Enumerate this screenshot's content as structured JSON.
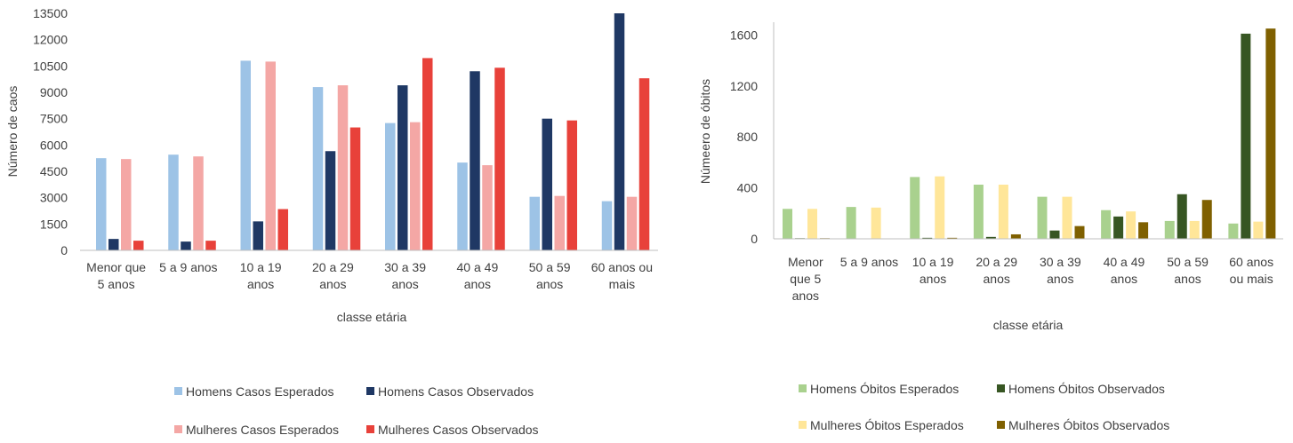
{
  "chart_data": [
    {
      "type": "bar",
      "ylabel": "Número de caos",
      "xlabel": "classe etária",
      "ylim": [
        0,
        13500
      ],
      "yticks": [
        0,
        1500,
        3000,
        4500,
        6000,
        7500,
        9000,
        10500,
        12000,
        13500
      ],
      "categories": [
        [
          "Menor que",
          "5 anos"
        ],
        [
          "5 a 9 anos"
        ],
        [
          "10 a 19",
          "anos"
        ],
        [
          "20 a 29",
          "anos"
        ],
        [
          "30 a 39",
          "anos"
        ],
        [
          "40 a 49",
          "anos"
        ],
        [
          "50 a 59",
          "anos"
        ],
        [
          "60 anos ou",
          "mais"
        ]
      ],
      "series": [
        {
          "name": "Homens Casos Esperados",
          "color": "#9DC3E6",
          "values": [
            5250,
            5450,
            10800,
            9300,
            7250,
            5000,
            3050,
            2800
          ]
        },
        {
          "name": "Homens Casos Observados",
          "color": "#1F3864",
          "values": [
            650,
            500,
            1650,
            5650,
            9400,
            10200,
            7500,
            13500
          ]
        },
        {
          "name": "Mulheres Casos Esperados",
          "color": "#F4A7A5",
          "values": [
            5200,
            5350,
            10750,
            9400,
            7300,
            4850,
            3100,
            3050
          ]
        },
        {
          "name": "Mulheres Casos Observados",
          "color": "#E8413A",
          "values": [
            550,
            550,
            2350,
            7000,
            10950,
            10400,
            7400,
            9800
          ]
        }
      ],
      "legend_position": "bottom"
    },
    {
      "type": "bar",
      "ylabel": "Númeero de óbitos",
      "xlabel": "classe etária",
      "ylim": [
        0,
        1700
      ],
      "yticks": [
        0,
        400,
        800,
        1200,
        1600
      ],
      "categories": [
        [
          "Menor",
          "que 5",
          "anos"
        ],
        [
          "5 a 9 anos"
        ],
        [
          "10 a 19",
          "anos"
        ],
        [
          "20 a 29",
          "anos"
        ],
        [
          "30 a 39",
          "anos"
        ],
        [
          "40 a 49",
          "anos"
        ],
        [
          "50 a 59",
          "anos"
        ],
        [
          "60 anos",
          "ou mais"
        ]
      ],
      "series": [
        {
          "name": "Homens Óbitos Esperados",
          "color": "#A9D18E",
          "values": [
            235,
            250,
            485,
            425,
            330,
            225,
            140,
            120
          ]
        },
        {
          "name": "Homens Óbitos Observados",
          "color": "#375623",
          "values": [
            5,
            3,
            8,
            15,
            65,
            175,
            350,
            1610
          ]
        },
        {
          "name": "Mulheres Óbitos Esperados",
          "color": "#FFE699",
          "values": [
            235,
            245,
            490,
            425,
            330,
            215,
            140,
            135
          ]
        },
        {
          "name": "Mulheres Óbitos Observados",
          "color": "#7F6000",
          "values": [
            5,
            3,
            8,
            35,
            100,
            130,
            305,
            1650
          ]
        }
      ],
      "legend_position": "bottom"
    }
  ]
}
